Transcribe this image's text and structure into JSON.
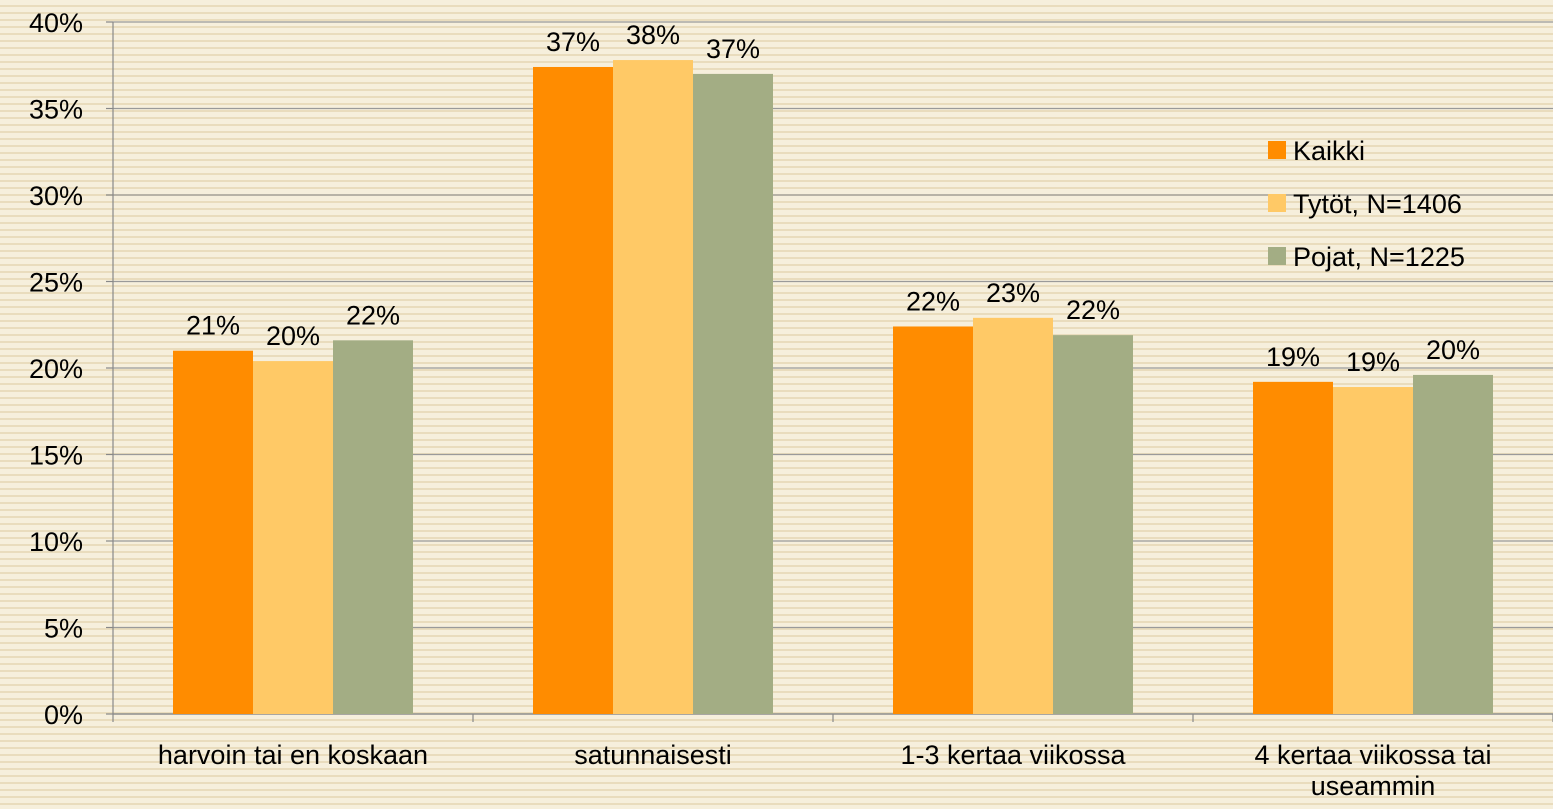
{
  "chart_data": {
    "type": "bar",
    "categories": [
      "harvoin tai en koskaan",
      "satunnaisesti",
      "1-3 kertaa viikossa",
      "4 kertaa viikossa tai useammin"
    ],
    "series": [
      {
        "name": "Kaikki",
        "color": "#ff8c00",
        "values": [
          21.0,
          37.4,
          22.4,
          19.2
        ],
        "value_labels": [
          "21%",
          "37%",
          "22%",
          "19%"
        ]
      },
      {
        "name": "Tytöt, N=1406",
        "color": "#ffc966",
        "values": [
          20.4,
          37.8,
          22.9,
          18.9
        ],
        "value_labels": [
          "20%",
          "38%",
          "23%",
          "19%"
        ]
      },
      {
        "name": "Pojat, N=1225",
        "color": "#a3ad84",
        "values": [
          21.6,
          37.0,
          21.9,
          19.6
        ],
        "value_labels": [
          "22%",
          "37%",
          "22%",
          "20%"
        ]
      }
    ],
    "ylim": [
      0,
      40
    ],
    "yticks": [
      {
        "value": 0,
        "label": "0%"
      },
      {
        "value": 5,
        "label": "5%"
      },
      {
        "value": 10,
        "label": "10%"
      },
      {
        "value": 15,
        "label": "15%"
      },
      {
        "value": 20,
        "label": "20%"
      },
      {
        "value": 25,
        "label": "25%"
      },
      {
        "value": 30,
        "label": "30%"
      },
      {
        "value": 35,
        "label": "35%"
      },
      {
        "value": 40,
        "label": "40%"
      }
    ],
    "grid": true,
    "legend": "right"
  }
}
